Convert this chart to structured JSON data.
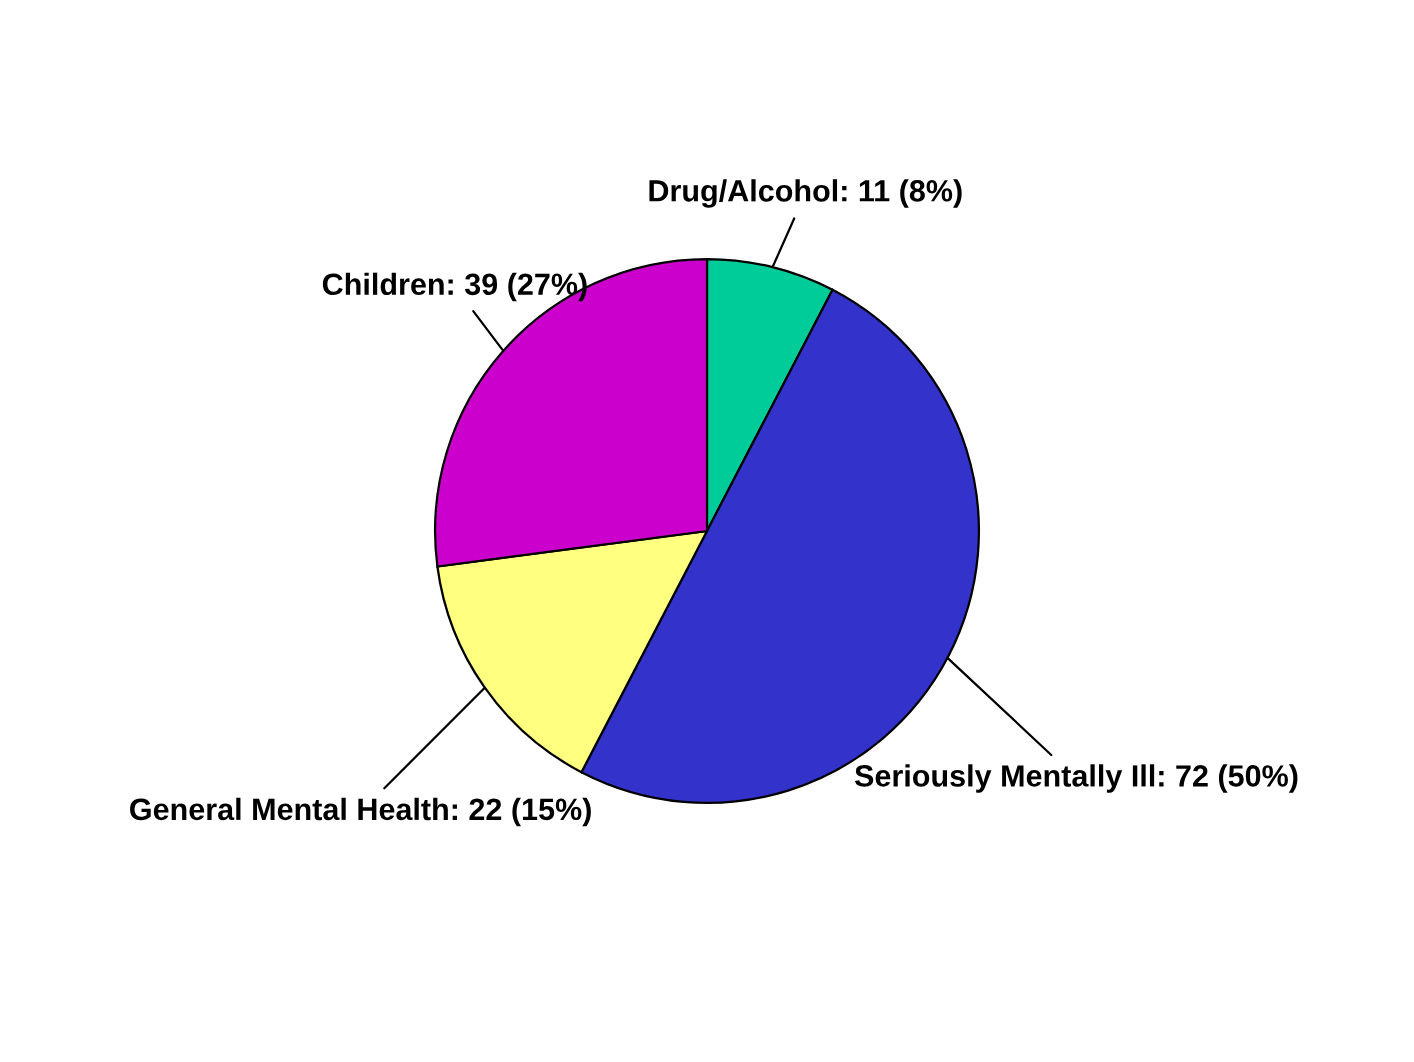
{
  "chart_data": {
    "type": "pie",
    "categories": [
      "Drug/Alcohol",
      "Seriously Mentally Ill",
      "General Mental Health",
      "Children"
    ],
    "values": [
      11,
      72,
      22,
      39
    ],
    "value_labels": [
      "11 (8%)",
      "72 (50%)",
      "22 (15%)",
      "39 (27%)"
    ],
    "colors": [
      "#00cc99",
      "#3333cc",
      "#ffff80",
      "#cc00cc"
    ],
    "legend": false
  }
}
